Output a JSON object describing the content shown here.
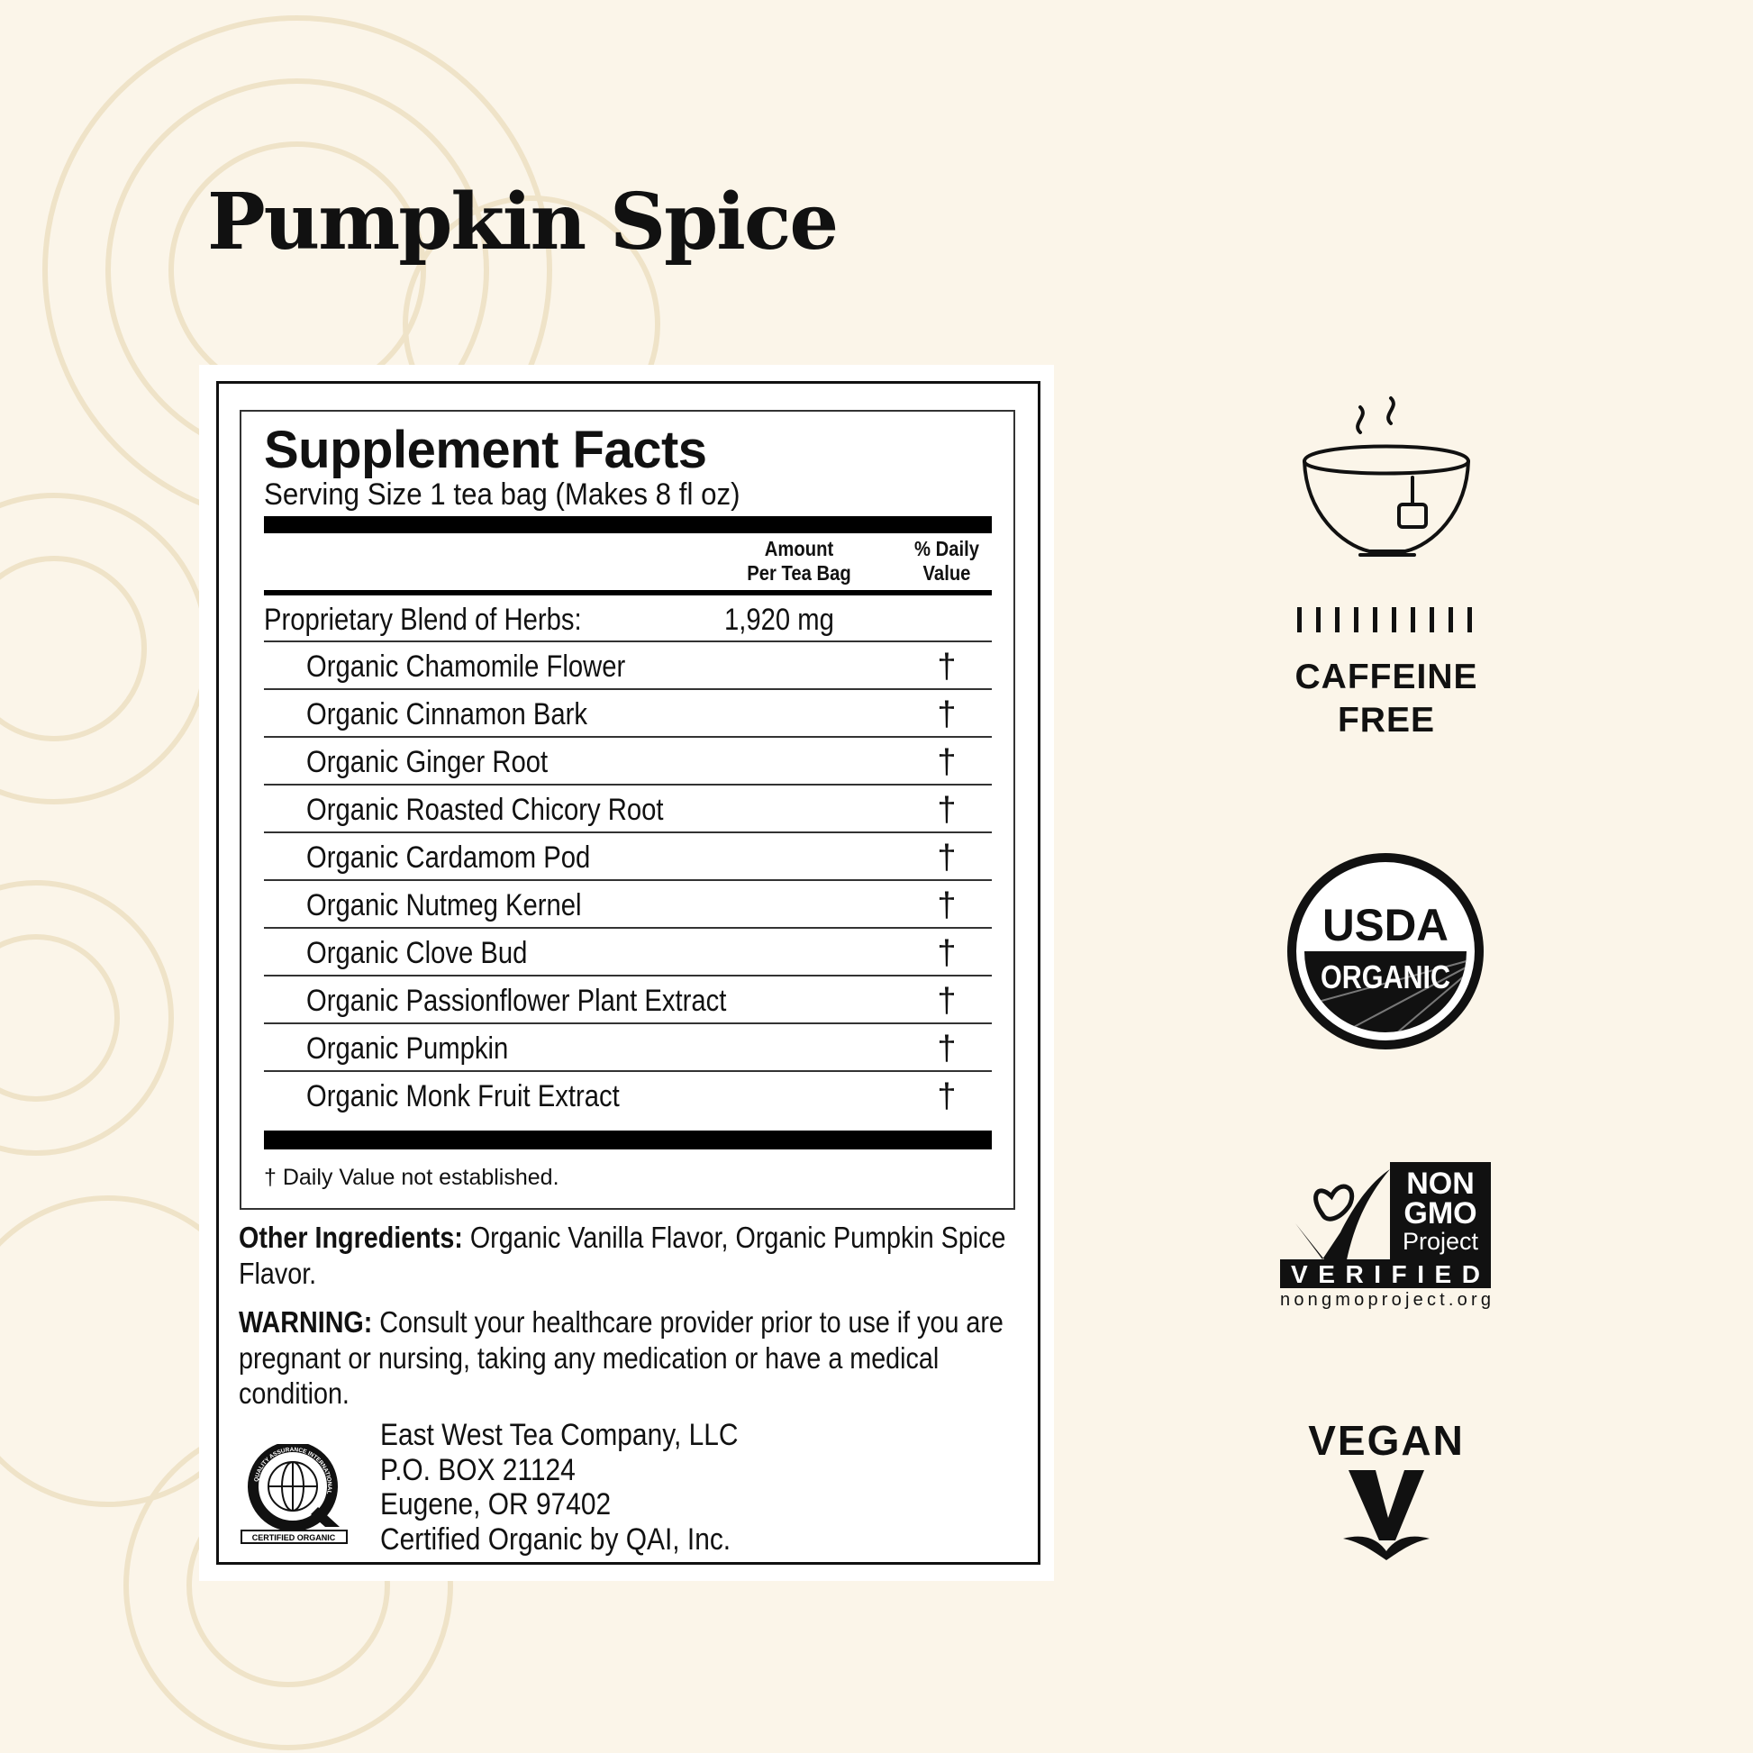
{
  "page": {
    "title": "Pumpkin Spice",
    "background_color": "#fbf5e9"
  },
  "supplement_facts": {
    "heading": "Supplement Facts",
    "serving_size": "Serving Size 1 tea bag (Makes 8 fl oz)",
    "columns": {
      "amount_line1": "Amount",
      "amount_line2": "Per Tea Bag",
      "dv_line1": "% Daily",
      "dv_line2": "Value"
    },
    "blend": {
      "label": "Proprietary Blend of Herbs:",
      "amount": "1,920 mg"
    },
    "ingredients": [
      {
        "name": "Organic Chamomile Flower",
        "dv": "†"
      },
      {
        "name": "Organic Cinnamon Bark",
        "dv": "†"
      },
      {
        "name": "Organic Ginger Root",
        "dv": "†"
      },
      {
        "name": "Organic Roasted Chicory Root",
        "dv": "†"
      },
      {
        "name": "Organic Cardamom Pod",
        "dv": "†"
      },
      {
        "name": "Organic Nutmeg Kernel",
        "dv": "†"
      },
      {
        "name": "Organic Clove Bud",
        "dv": "†"
      },
      {
        "name": "Organic Passionflower Plant Extract",
        "dv": "†"
      },
      {
        "name": "Organic Pumpkin",
        "dv": "†"
      },
      {
        "name": "Organic Monk Fruit Extract",
        "dv": "†"
      }
    ],
    "footnote": "† Daily Value not established."
  },
  "other_ingredients": {
    "label": "Other Ingredients:",
    "text": " Organic Vanilla Flavor, Organic Pumpkin Spice Flavor."
  },
  "warning": {
    "label": "WARNING:",
    "text": " Consult your healthcare provider prior to use if you are pregnant or nursing, taking any medication or have a medical condition."
  },
  "company": {
    "lines": [
      "East West Tea Company, LLC",
      "P.O. BOX 21124",
      "Eugene, OR 97402",
      "Certified Organic by QAI, Inc."
    ],
    "qai_logo_text": [
      "QUALITY ASSURANCE INTERNATIONAL",
      "CERTIFIED ORGANIC"
    ]
  },
  "badges": {
    "caffeine_free": {
      "line1": "CAFFEINE",
      "line2": "FREE",
      "icon": "tea-cup-icon"
    },
    "usda": {
      "top": "USDA",
      "bottom": "ORGANIC"
    },
    "non_gmo": {
      "line1": "NON",
      "line2": "GMO",
      "line3": "Project",
      "verified": "VERIFIED",
      "url": "nongmoproject.org"
    },
    "vegan": {
      "label": "VEGAN",
      "icon": "vegan-v-icon"
    }
  }
}
